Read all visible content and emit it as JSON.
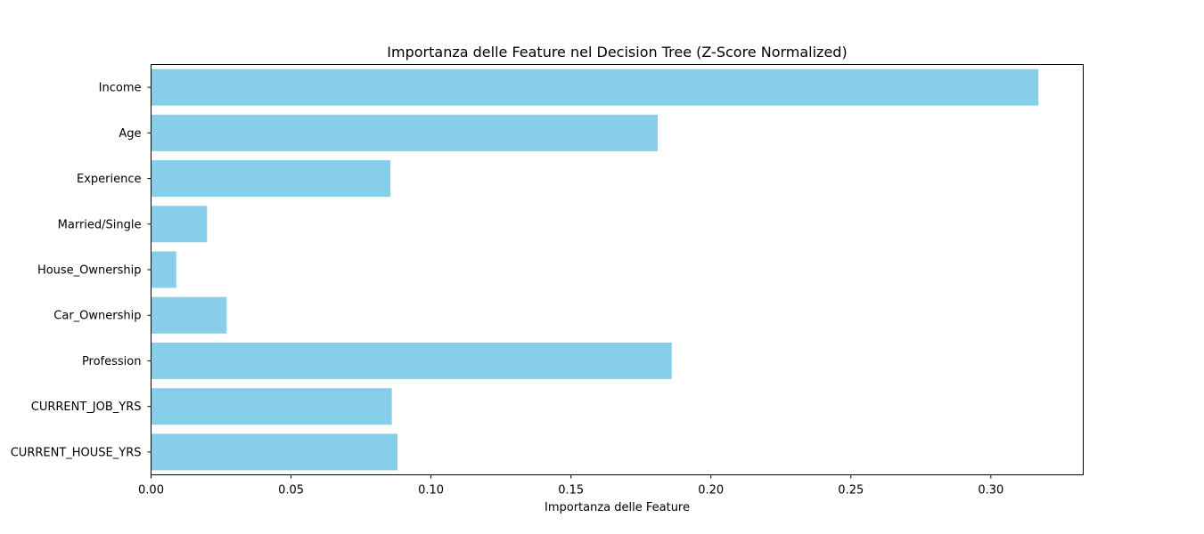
{
  "chart_data": {
    "type": "bar",
    "orientation": "horizontal",
    "title": "Importanza delle Feature nel Decision Tree (Z-Score Normalized)",
    "xlabel": "Importanza delle Feature",
    "ylabel": "",
    "categories": [
      "Income",
      "Age",
      "Experience",
      "Married/Single",
      "House_Ownership",
      "Car_Ownership",
      "Profession",
      "CURRENT_JOB_YRS",
      "CURRENT_HOUSE_YRS"
    ],
    "values": [
      0.317,
      0.181,
      0.0855,
      0.02,
      0.009,
      0.027,
      0.186,
      0.086,
      0.088
    ],
    "xlim": [
      0,
      0.333
    ],
    "xticks": [
      0.0,
      0.05,
      0.1,
      0.15,
      0.2,
      0.25,
      0.3
    ],
    "xtick_labels": [
      "0.00",
      "0.05",
      "0.10",
      "0.15",
      "0.20",
      "0.25",
      "0.30"
    ],
    "bar_color": "#87ceeb",
    "grid": false
  }
}
